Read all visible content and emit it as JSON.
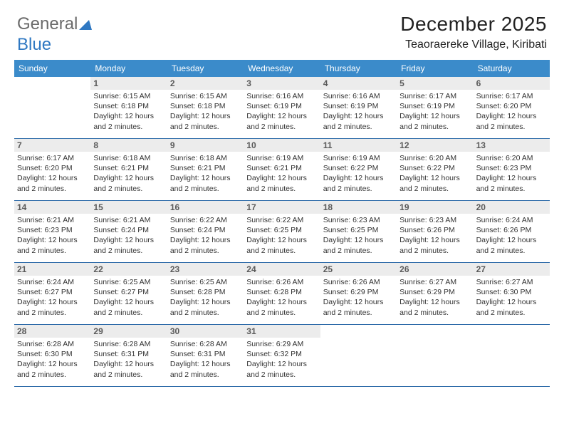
{
  "brand": {
    "part1": "General",
    "part2": "Blue"
  },
  "header": {
    "month_title": "December 2025",
    "location": "Teaoraereke Village, Kiribati"
  },
  "colors": {
    "header_bg": "#3b8bca",
    "header_text": "#ffffff",
    "daynum_bg": "#ececec",
    "daynum_text": "#5a5a5a",
    "row_border": "#2c6aa8",
    "body_text": "#333333",
    "brand_gray": "#6a6a6a",
    "brand_blue": "#2f78c2"
  },
  "days_of_week": [
    "Sunday",
    "Monday",
    "Tuesday",
    "Wednesday",
    "Thursday",
    "Friday",
    "Saturday"
  ],
  "weeks": [
    [
      {
        "n": "",
        "sunrise": "",
        "sunset": "",
        "daylight": ""
      },
      {
        "n": "1",
        "sunrise": "Sunrise: 6:15 AM",
        "sunset": "Sunset: 6:18 PM",
        "daylight": "Daylight: 12 hours and 2 minutes."
      },
      {
        "n": "2",
        "sunrise": "Sunrise: 6:15 AM",
        "sunset": "Sunset: 6:18 PM",
        "daylight": "Daylight: 12 hours and 2 minutes."
      },
      {
        "n": "3",
        "sunrise": "Sunrise: 6:16 AM",
        "sunset": "Sunset: 6:19 PM",
        "daylight": "Daylight: 12 hours and 2 minutes."
      },
      {
        "n": "4",
        "sunrise": "Sunrise: 6:16 AM",
        "sunset": "Sunset: 6:19 PM",
        "daylight": "Daylight: 12 hours and 2 minutes."
      },
      {
        "n": "5",
        "sunrise": "Sunrise: 6:17 AM",
        "sunset": "Sunset: 6:19 PM",
        "daylight": "Daylight: 12 hours and 2 minutes."
      },
      {
        "n": "6",
        "sunrise": "Sunrise: 6:17 AM",
        "sunset": "Sunset: 6:20 PM",
        "daylight": "Daylight: 12 hours and 2 minutes."
      }
    ],
    [
      {
        "n": "7",
        "sunrise": "Sunrise: 6:17 AM",
        "sunset": "Sunset: 6:20 PM",
        "daylight": "Daylight: 12 hours and 2 minutes."
      },
      {
        "n": "8",
        "sunrise": "Sunrise: 6:18 AM",
        "sunset": "Sunset: 6:21 PM",
        "daylight": "Daylight: 12 hours and 2 minutes."
      },
      {
        "n": "9",
        "sunrise": "Sunrise: 6:18 AM",
        "sunset": "Sunset: 6:21 PM",
        "daylight": "Daylight: 12 hours and 2 minutes."
      },
      {
        "n": "10",
        "sunrise": "Sunrise: 6:19 AM",
        "sunset": "Sunset: 6:21 PM",
        "daylight": "Daylight: 12 hours and 2 minutes."
      },
      {
        "n": "11",
        "sunrise": "Sunrise: 6:19 AM",
        "sunset": "Sunset: 6:22 PM",
        "daylight": "Daylight: 12 hours and 2 minutes."
      },
      {
        "n": "12",
        "sunrise": "Sunrise: 6:20 AM",
        "sunset": "Sunset: 6:22 PM",
        "daylight": "Daylight: 12 hours and 2 minutes."
      },
      {
        "n": "13",
        "sunrise": "Sunrise: 6:20 AM",
        "sunset": "Sunset: 6:23 PM",
        "daylight": "Daylight: 12 hours and 2 minutes."
      }
    ],
    [
      {
        "n": "14",
        "sunrise": "Sunrise: 6:21 AM",
        "sunset": "Sunset: 6:23 PM",
        "daylight": "Daylight: 12 hours and 2 minutes."
      },
      {
        "n": "15",
        "sunrise": "Sunrise: 6:21 AM",
        "sunset": "Sunset: 6:24 PM",
        "daylight": "Daylight: 12 hours and 2 minutes."
      },
      {
        "n": "16",
        "sunrise": "Sunrise: 6:22 AM",
        "sunset": "Sunset: 6:24 PM",
        "daylight": "Daylight: 12 hours and 2 minutes."
      },
      {
        "n": "17",
        "sunrise": "Sunrise: 6:22 AM",
        "sunset": "Sunset: 6:25 PM",
        "daylight": "Daylight: 12 hours and 2 minutes."
      },
      {
        "n": "18",
        "sunrise": "Sunrise: 6:23 AM",
        "sunset": "Sunset: 6:25 PM",
        "daylight": "Daylight: 12 hours and 2 minutes."
      },
      {
        "n": "19",
        "sunrise": "Sunrise: 6:23 AM",
        "sunset": "Sunset: 6:26 PM",
        "daylight": "Daylight: 12 hours and 2 minutes."
      },
      {
        "n": "20",
        "sunrise": "Sunrise: 6:24 AM",
        "sunset": "Sunset: 6:26 PM",
        "daylight": "Daylight: 12 hours and 2 minutes."
      }
    ],
    [
      {
        "n": "21",
        "sunrise": "Sunrise: 6:24 AM",
        "sunset": "Sunset: 6:27 PM",
        "daylight": "Daylight: 12 hours and 2 minutes."
      },
      {
        "n": "22",
        "sunrise": "Sunrise: 6:25 AM",
        "sunset": "Sunset: 6:27 PM",
        "daylight": "Daylight: 12 hours and 2 minutes."
      },
      {
        "n": "23",
        "sunrise": "Sunrise: 6:25 AM",
        "sunset": "Sunset: 6:28 PM",
        "daylight": "Daylight: 12 hours and 2 minutes."
      },
      {
        "n": "24",
        "sunrise": "Sunrise: 6:26 AM",
        "sunset": "Sunset: 6:28 PM",
        "daylight": "Daylight: 12 hours and 2 minutes."
      },
      {
        "n": "25",
        "sunrise": "Sunrise: 6:26 AM",
        "sunset": "Sunset: 6:29 PM",
        "daylight": "Daylight: 12 hours and 2 minutes."
      },
      {
        "n": "26",
        "sunrise": "Sunrise: 6:27 AM",
        "sunset": "Sunset: 6:29 PM",
        "daylight": "Daylight: 12 hours and 2 minutes."
      },
      {
        "n": "27",
        "sunrise": "Sunrise: 6:27 AM",
        "sunset": "Sunset: 6:30 PM",
        "daylight": "Daylight: 12 hours and 2 minutes."
      }
    ],
    [
      {
        "n": "28",
        "sunrise": "Sunrise: 6:28 AM",
        "sunset": "Sunset: 6:30 PM",
        "daylight": "Daylight: 12 hours and 2 minutes."
      },
      {
        "n": "29",
        "sunrise": "Sunrise: 6:28 AM",
        "sunset": "Sunset: 6:31 PM",
        "daylight": "Daylight: 12 hours and 2 minutes."
      },
      {
        "n": "30",
        "sunrise": "Sunrise: 6:28 AM",
        "sunset": "Sunset: 6:31 PM",
        "daylight": "Daylight: 12 hours and 2 minutes."
      },
      {
        "n": "31",
        "sunrise": "Sunrise: 6:29 AM",
        "sunset": "Sunset: 6:32 PM",
        "daylight": "Daylight: 12 hours and 2 minutes."
      },
      {
        "n": "",
        "sunrise": "",
        "sunset": "",
        "daylight": ""
      },
      {
        "n": "",
        "sunrise": "",
        "sunset": "",
        "daylight": ""
      },
      {
        "n": "",
        "sunrise": "",
        "sunset": "",
        "daylight": ""
      }
    ]
  ]
}
